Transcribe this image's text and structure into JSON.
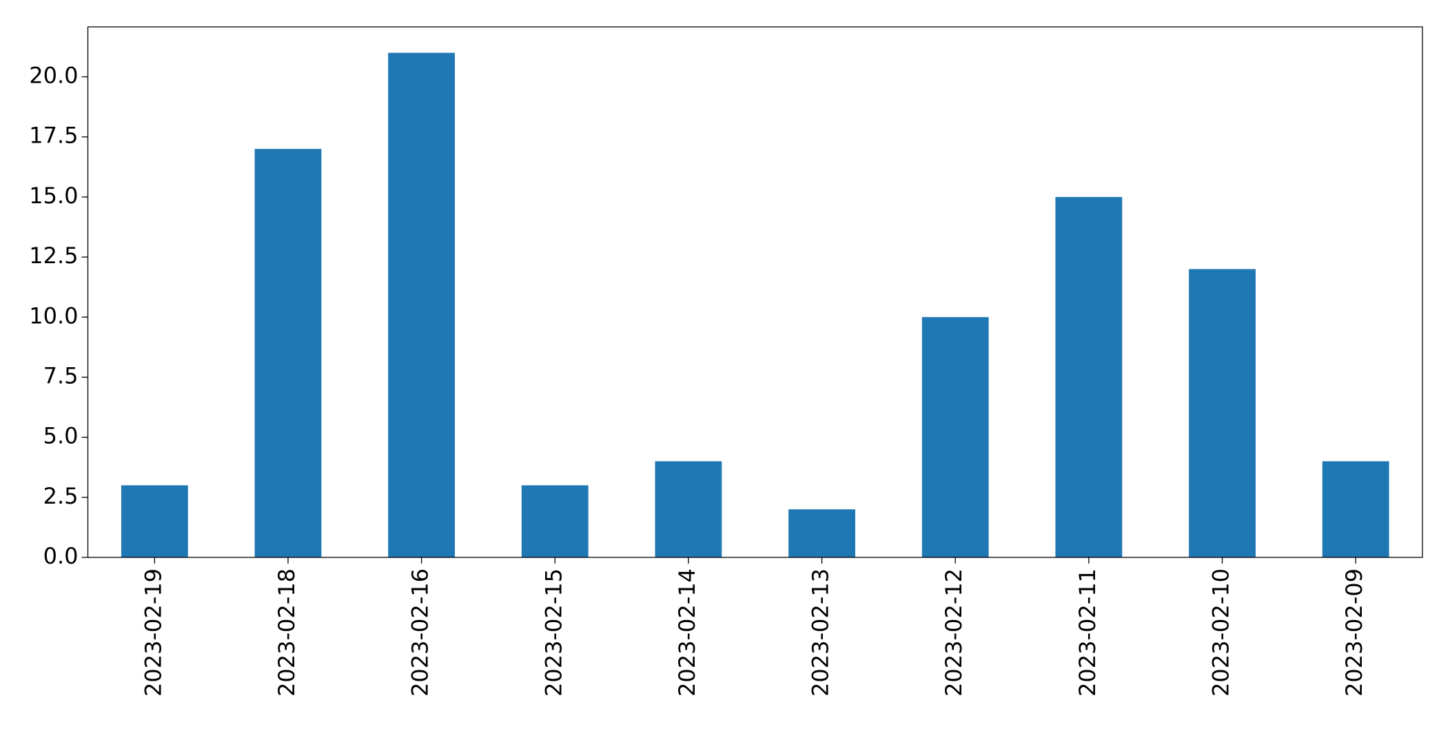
{
  "chart_data": {
    "type": "bar",
    "categories": [
      "2023-02-19",
      "2023-02-18",
      "2023-02-16",
      "2023-02-15",
      "2023-02-14",
      "2023-02-13",
      "2023-02-12",
      "2023-02-11",
      "2023-02-10",
      "2023-02-09"
    ],
    "values": [
      3,
      17,
      21,
      3,
      4,
      2,
      10,
      15,
      12,
      4
    ],
    "color": "#1f77b4",
    "ylim": [
      0,
      22.08
    ],
    "yticks": [
      {
        "value": 0,
        "label": "0.0"
      },
      2.5,
      {
        "value": 5,
        "label": "5.0"
      },
      7.5,
      {
        "value": 10,
        "label": "10.0"
      },
      12.5,
      {
        "value": 15,
        "label": "15.0"
      },
      17.5,
      {
        "value": 20,
        "label": "20.0"
      }
    ],
    "grid": false
  }
}
